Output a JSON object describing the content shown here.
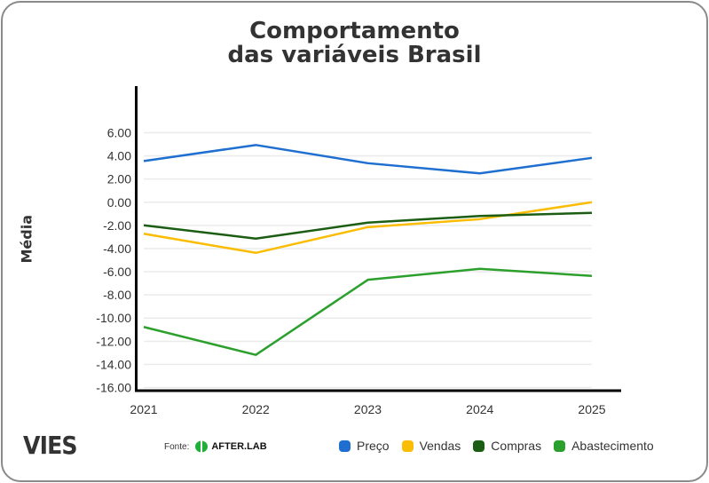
{
  "title_line1": "Comportamento",
  "title_line2": "das variáveis Brasil",
  "brand": "VIES",
  "source_label": "Fonte:",
  "source_name": "AFTER.LAB",
  "chart_data": {
    "type": "line",
    "title": "Comportamento das variáveis Brasil",
    "xlabel": "",
    "ylabel": "Média",
    "ylim": [
      -16,
      6
    ],
    "grid": true,
    "legend_position": "bottom-right",
    "x": [
      "2021",
      "2022",
      "2023",
      "2024",
      "2025"
    ],
    "yticks": [
      "6.00",
      "4.00",
      "2.00",
      "0.00",
      "-2.00",
      "-4.00",
      "-6.00",
      "-8.00",
      "-10.00",
      "-12.00",
      "-14.00",
      "-16.00"
    ],
    "ytick_values": [
      6,
      4,
      2,
      0,
      -2,
      -4,
      -6,
      -8,
      -10,
      -12,
      -14,
      -16
    ],
    "series": [
      {
        "name": "Preço",
        "color": "#1f6fd1",
        "values": [
          3.56,
          4.94,
          3.37,
          2.49,
          3.83
        ]
      },
      {
        "name": "Vendas",
        "color": "#fbbc04",
        "values": [
          -2.72,
          -4.37,
          -2.15,
          -1.46,
          0.0
        ]
      },
      {
        "name": "Compras",
        "color": "#1b5e13",
        "values": [
          -1.99,
          -3.14,
          -1.76,
          -1.19,
          -0.92
        ]
      },
      {
        "name": "Abastecimento",
        "color": "#2ca02c",
        "values": [
          -10.77,
          -13.18,
          -6.7,
          -5.75,
          -6.36
        ]
      }
    ]
  }
}
